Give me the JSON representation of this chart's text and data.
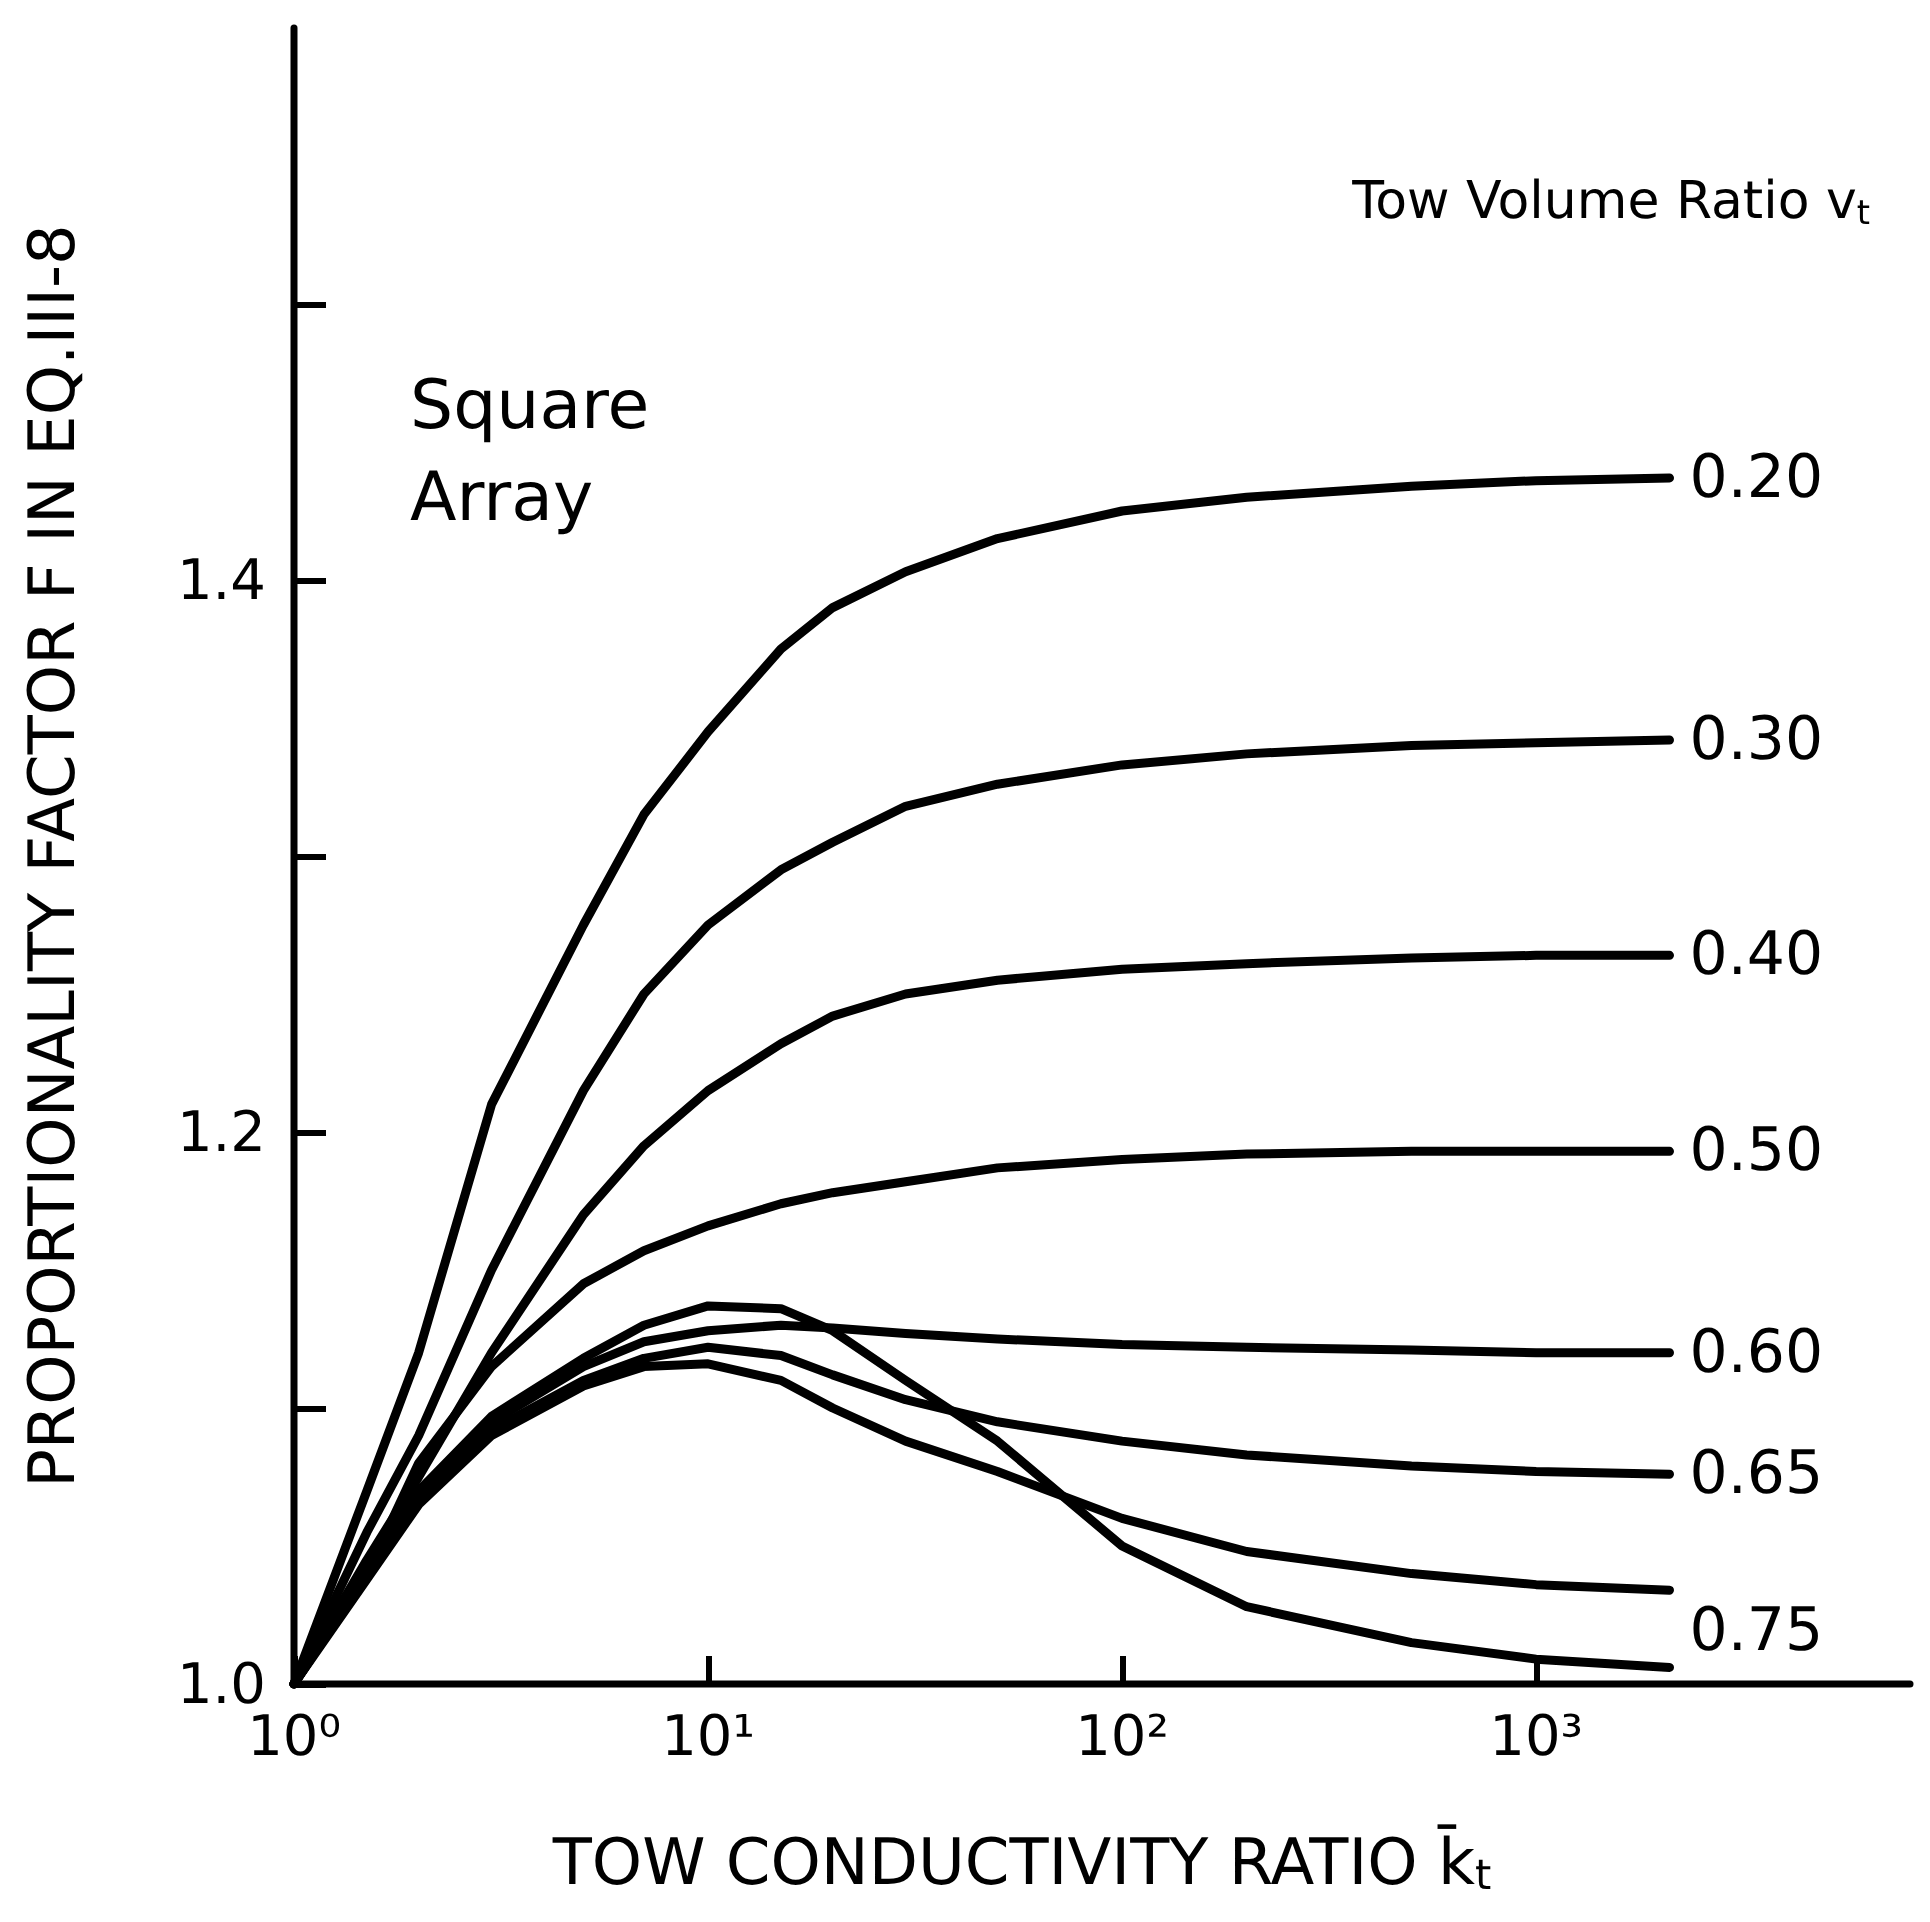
{
  "chart_data": {
    "type": "line",
    "xlabel": "TOW CONDUCTIVITY RATIO k̄$_{t}$",
    "ylabel": "PROPORTIONALITY FACTOR F IN EQ.III-8",
    "legend_title": "Tow Volume Ratio v$_{t}$",
    "annotations": [
      "Square Array"
    ],
    "x": [
      1,
      1.5,
      2,
      3,
      5,
      7,
      10,
      15,
      20,
      30,
      50,
      100,
      200,
      500,
      1000,
      2100
    ],
    "series": [
      {
        "name": "0.20",
        "color": "#000000",
        "values": [
          1.0,
          1.07,
          1.12,
          1.21,
          1.275,
          1.315,
          1.345,
          1.375,
          1.39,
          1.403,
          1.415,
          1.425,
          1.43,
          1.434,
          1.436,
          1.437
        ]
      },
      {
        "name": "0.30",
        "color": "#000000",
        "values": [
          1.0,
          1.055,
          1.09,
          1.15,
          1.215,
          1.25,
          1.275,
          1.295,
          1.305,
          1.318,
          1.326,
          1.333,
          1.337,
          1.34,
          1.341,
          1.342
        ]
      },
      {
        "name": "0.40",
        "color": "#000000",
        "values": [
          1.0,
          1.045,
          1.075,
          1.12,
          1.17,
          1.195,
          1.215,
          1.232,
          1.242,
          1.25,
          1.255,
          1.259,
          1.261,
          1.263,
          1.264,
          1.264
        ]
      },
      {
        "name": "0.50",
        "color": "#000000",
        "values": [
          1.0,
          1.04,
          1.08,
          1.115,
          1.145,
          1.157,
          1.166,
          1.174,
          1.178,
          1.182,
          1.187,
          1.19,
          1.192,
          1.193,
          1.193,
          1.193
        ]
      },
      {
        "name": "0.60",
        "color": "#000000",
        "values": [
          1.0,
          1.04,
          1.07,
          1.095,
          1.115,
          1.124,
          1.128,
          1.13,
          1.129,
          1.127,
          1.125,
          1.123,
          1.122,
          1.121,
          1.12,
          1.12
        ]
      },
      {
        "name": "0.65",
        "color": "#000000",
        "values": [
          1.0,
          1.04,
          1.068,
          1.092,
          1.11,
          1.118,
          1.122,
          1.119,
          1.112,
          1.103,
          1.095,
          1.088,
          1.083,
          1.079,
          1.077,
          1.076
        ]
      },
      {
        "color": "#000000",
        "values": [
          1.0,
          1.038,
          1.065,
          1.09,
          1.108,
          1.115,
          1.116,
          1.11,
          1.1,
          1.088,
          1.077,
          1.06,
          1.048,
          1.04,
          1.036,
          1.034
        ]
      },
      {
        "name": "0.75",
        "color": "#000000",
        "values": [
          1.0,
          1.04,
          1.07,
          1.097,
          1.118,
          1.13,
          1.137,
          1.136,
          1.128,
          1.11,
          1.088,
          1.05,
          1.028,
          1.015,
          1.009,
          1.006
        ]
      }
    ],
    "log": "x",
    "xlim": [
      1,
      8000
    ],
    "xticks": [
      {
        "value": 1,
        "label": "10⁰"
      },
      {
        "value": 10,
        "label": "10¹"
      },
      {
        "value": 100,
        "label": "10²"
      },
      {
        "value": 1000,
        "label": "10³"
      }
    ],
    "ylim": [
      1.0,
      1.6
    ],
    "yticks": [
      {
        "value": 1.0,
        "label": "1.0"
      },
      {
        "value": 1.1,
        "label": null
      },
      {
        "value": 1.2,
        "label": "1.2"
      },
      {
        "value": 1.3,
        "label": null
      },
      {
        "value": 1.4,
        "label": "1.4"
      },
      {
        "value": 1.5,
        "label": null
      }
    ],
    "grid": false,
    "legend": false,
    "marker": "none",
    "line_style": "solid"
  }
}
